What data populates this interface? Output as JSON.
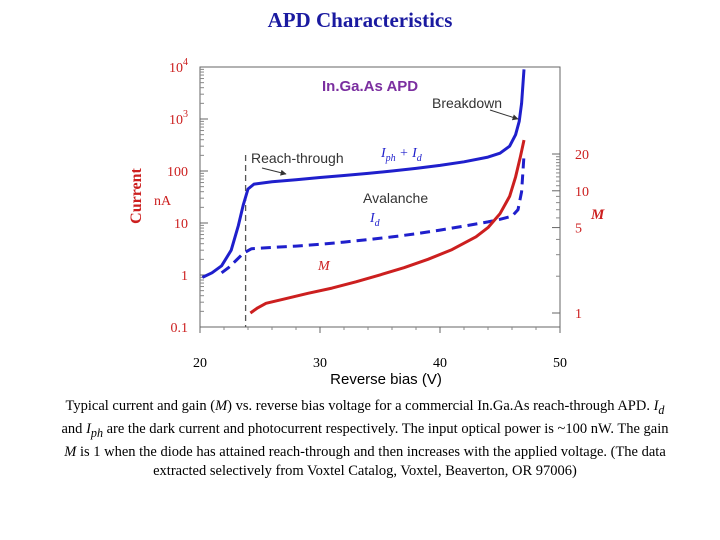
{
  "title": "APD Characteristics",
  "chart_data": {
    "type": "line",
    "title": "APD Characteristics",
    "xlabel": "Reverse bias (V)",
    "ylabel": "Current",
    "ylabel_unit": "nA",
    "yscale": "log",
    "xlim": [
      20,
      50
    ],
    "ylim": [
      0.1,
      10000
    ],
    "x_ticks": [
      20,
      30,
      40,
      50
    ],
    "y_ticks": [
      {
        "value": 10000,
        "label": "10^4"
      },
      {
        "value": 1000,
        "label": "10^3"
      },
      {
        "value": 100,
        "label": "100"
      },
      {
        "value": 10,
        "label": "10"
      },
      {
        "value": 1,
        "label": "1"
      },
      {
        "value": 0.1,
        "label": "0.1"
      }
    ],
    "y2_label": "M",
    "y2_ticks": [
      {
        "value": 20,
        "label": "20"
      },
      {
        "value": 10,
        "label": "10"
      },
      {
        "value": 5,
        "label": "5"
      },
      {
        "value": 1,
        "label": "1"
      }
    ],
    "device_label": "In.Ga.As APD",
    "annotations": {
      "breakdown": "Breakdown",
      "reach_through": "Reach-through",
      "avalanche": "Avalanche",
      "iph_id": "Iph + Id",
      "id": "Id",
      "m": "M"
    },
    "series": [
      {
        "name": "Iph + Id",
        "style": "solid",
        "color": "#1f1fcc",
        "axis": "current",
        "x": [
          20.2,
          21.0,
          21.8,
          22.6,
          23.2,
          23.6,
          24.0,
          24.5,
          26,
          28,
          30,
          32,
          34,
          36,
          38,
          40,
          42,
          44,
          45,
          45.8,
          46.3,
          46.6,
          46.8,
          47.0
        ],
        "y": [
          0.9,
          1.1,
          1.5,
          3.0,
          9,
          22,
          45,
          56,
          62,
          68,
          75,
          82,
          90,
          100,
          112,
          128,
          150,
          185,
          220,
          300,
          500,
          900,
          2000,
          9000
        ]
      },
      {
        "name": "Id",
        "style": "dashed",
        "color": "#1f1fcc",
        "axis": "current",
        "x": [
          21.8,
          22.4,
          23.0,
          23.6,
          24.3,
          26,
          28,
          30,
          32,
          34,
          36,
          38,
          40,
          42,
          44,
          45,
          46.0,
          46.5,
          46.8,
          47.0
        ],
        "y": [
          1.1,
          1.4,
          1.9,
          2.6,
          3.2,
          3.4,
          3.6,
          3.9,
          4.3,
          4.8,
          5.4,
          6.2,
          7.3,
          8.7,
          10.5,
          11.8,
          13.5,
          18,
          40,
          200
        ]
      },
      {
        "name": "M",
        "style": "solid",
        "color": "#cc1f1f",
        "axis": "gain",
        "x": [
          24.2,
          24.8,
          25.5,
          27,
          29,
          31,
          33,
          35,
          37,
          39,
          41,
          43,
          44,
          45,
          45.8,
          46.3,
          46.7,
          47.0
        ],
        "y": [
          1.0,
          1.1,
          1.2,
          1.3,
          1.45,
          1.6,
          1.8,
          2.05,
          2.35,
          2.75,
          3.3,
          4.2,
          5.0,
          6.5,
          9.0,
          13,
          19,
          26
        ]
      }
    ],
    "reach_through_voltage": 23.8
  },
  "caption": {
    "p1": "Typical current and gain (",
    "m1": "M",
    "p2": ") vs. reverse bias voltage for a commercial In.Ga.As reach-through APD. ",
    "id_main": "I",
    "id_sub": "d",
    "p3": " and ",
    "iph_main": "I",
    "iph_sub": "ph",
    "p4": " are the dark current and photocurrent respectively.  The input optical power is ~100 nW. The gain ",
    "m2": "M",
    "p5": " is 1 when the diode has attained reach-through and then increases with the applied voltage. (The data extracted selectively from Voxtel Catalog, Voxtel, Beaverton, OR 97006)"
  },
  "colors": {
    "title": "#1a1aa0",
    "blue": "#1f1fcc",
    "red": "#cc1f1f",
    "device_label": "#7b2fa0",
    "axis_label": "#cc1f1f",
    "axes": "#555555"
  }
}
